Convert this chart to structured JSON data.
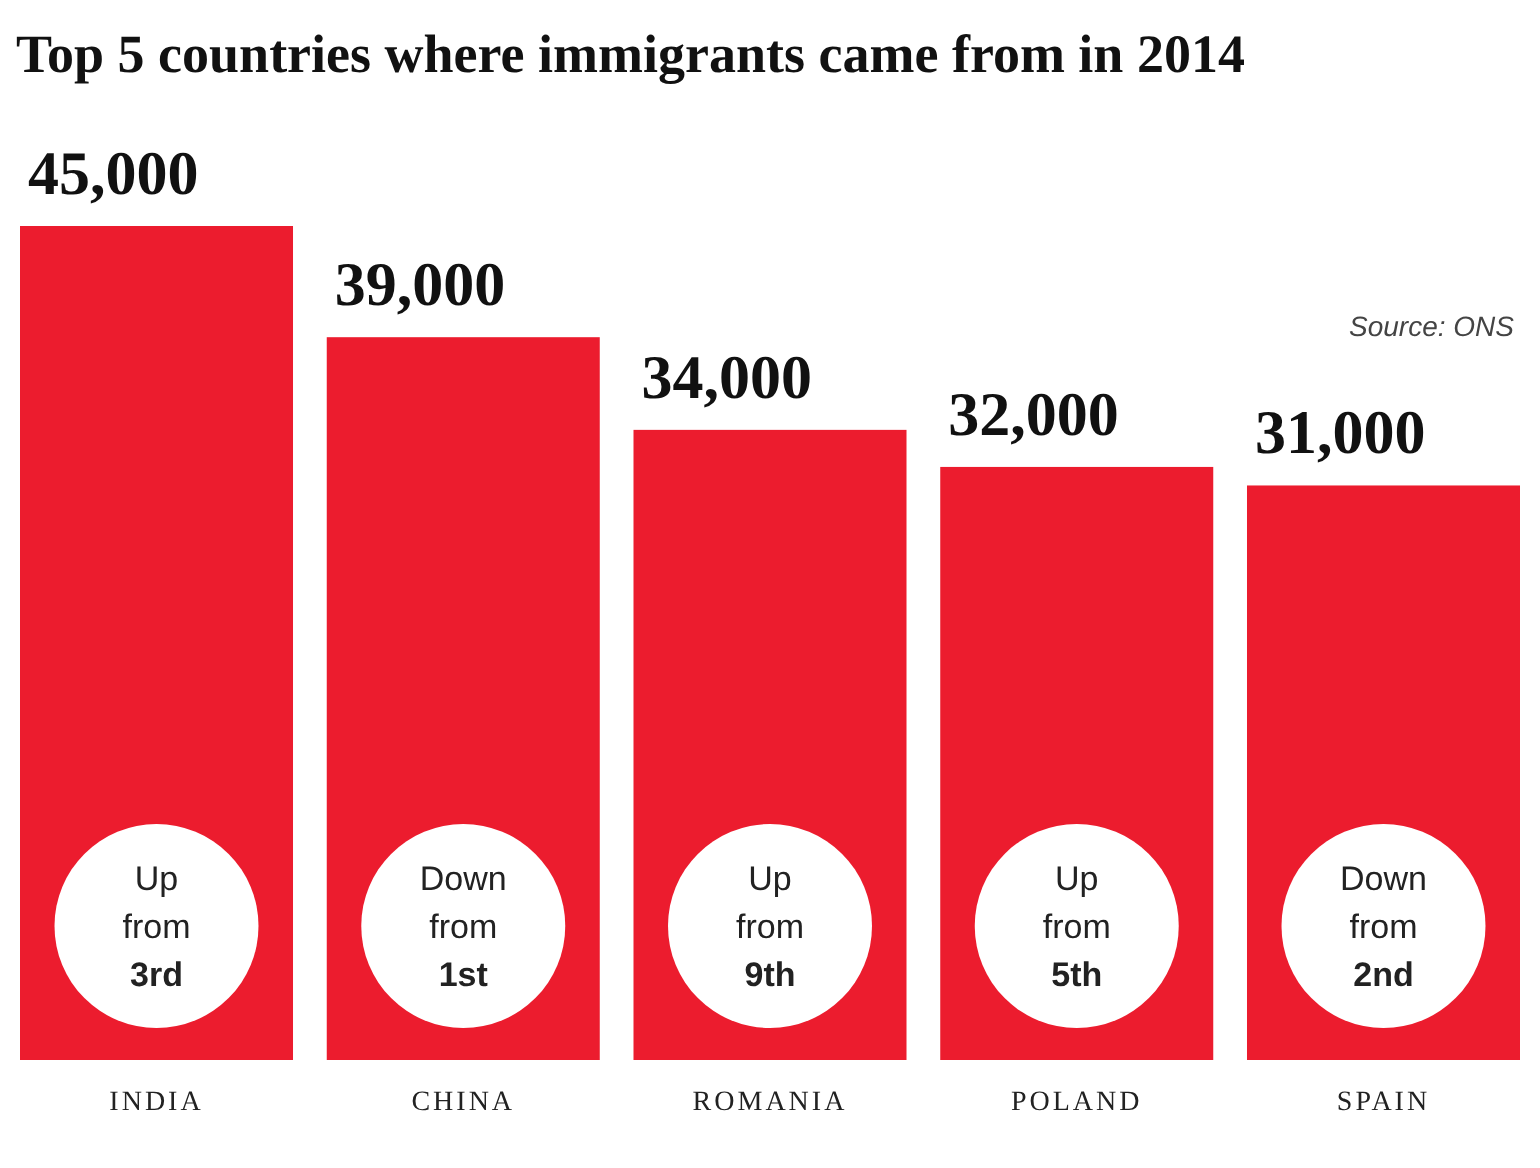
{
  "chart_data": {
    "type": "bar",
    "title": "Top 5 countries where immigrants came from in 2014",
    "categories": [
      "INDIA",
      "CHINA",
      "ROMANIA",
      "POLAND",
      "SPAIN"
    ],
    "values": [
      45000,
      39000,
      34000,
      32000,
      31000
    ],
    "value_labels": [
      "45,000",
      "39,000",
      "34,000",
      "32,000",
      "31,000"
    ],
    "color": "#ec1c2e",
    "annotations": [
      "Source: ONS",
      "Up from 3rd",
      "Down from 1st",
      "Up from 9th",
      "Up from 5th",
      "Down from 2nd"
    ]
  }
}
